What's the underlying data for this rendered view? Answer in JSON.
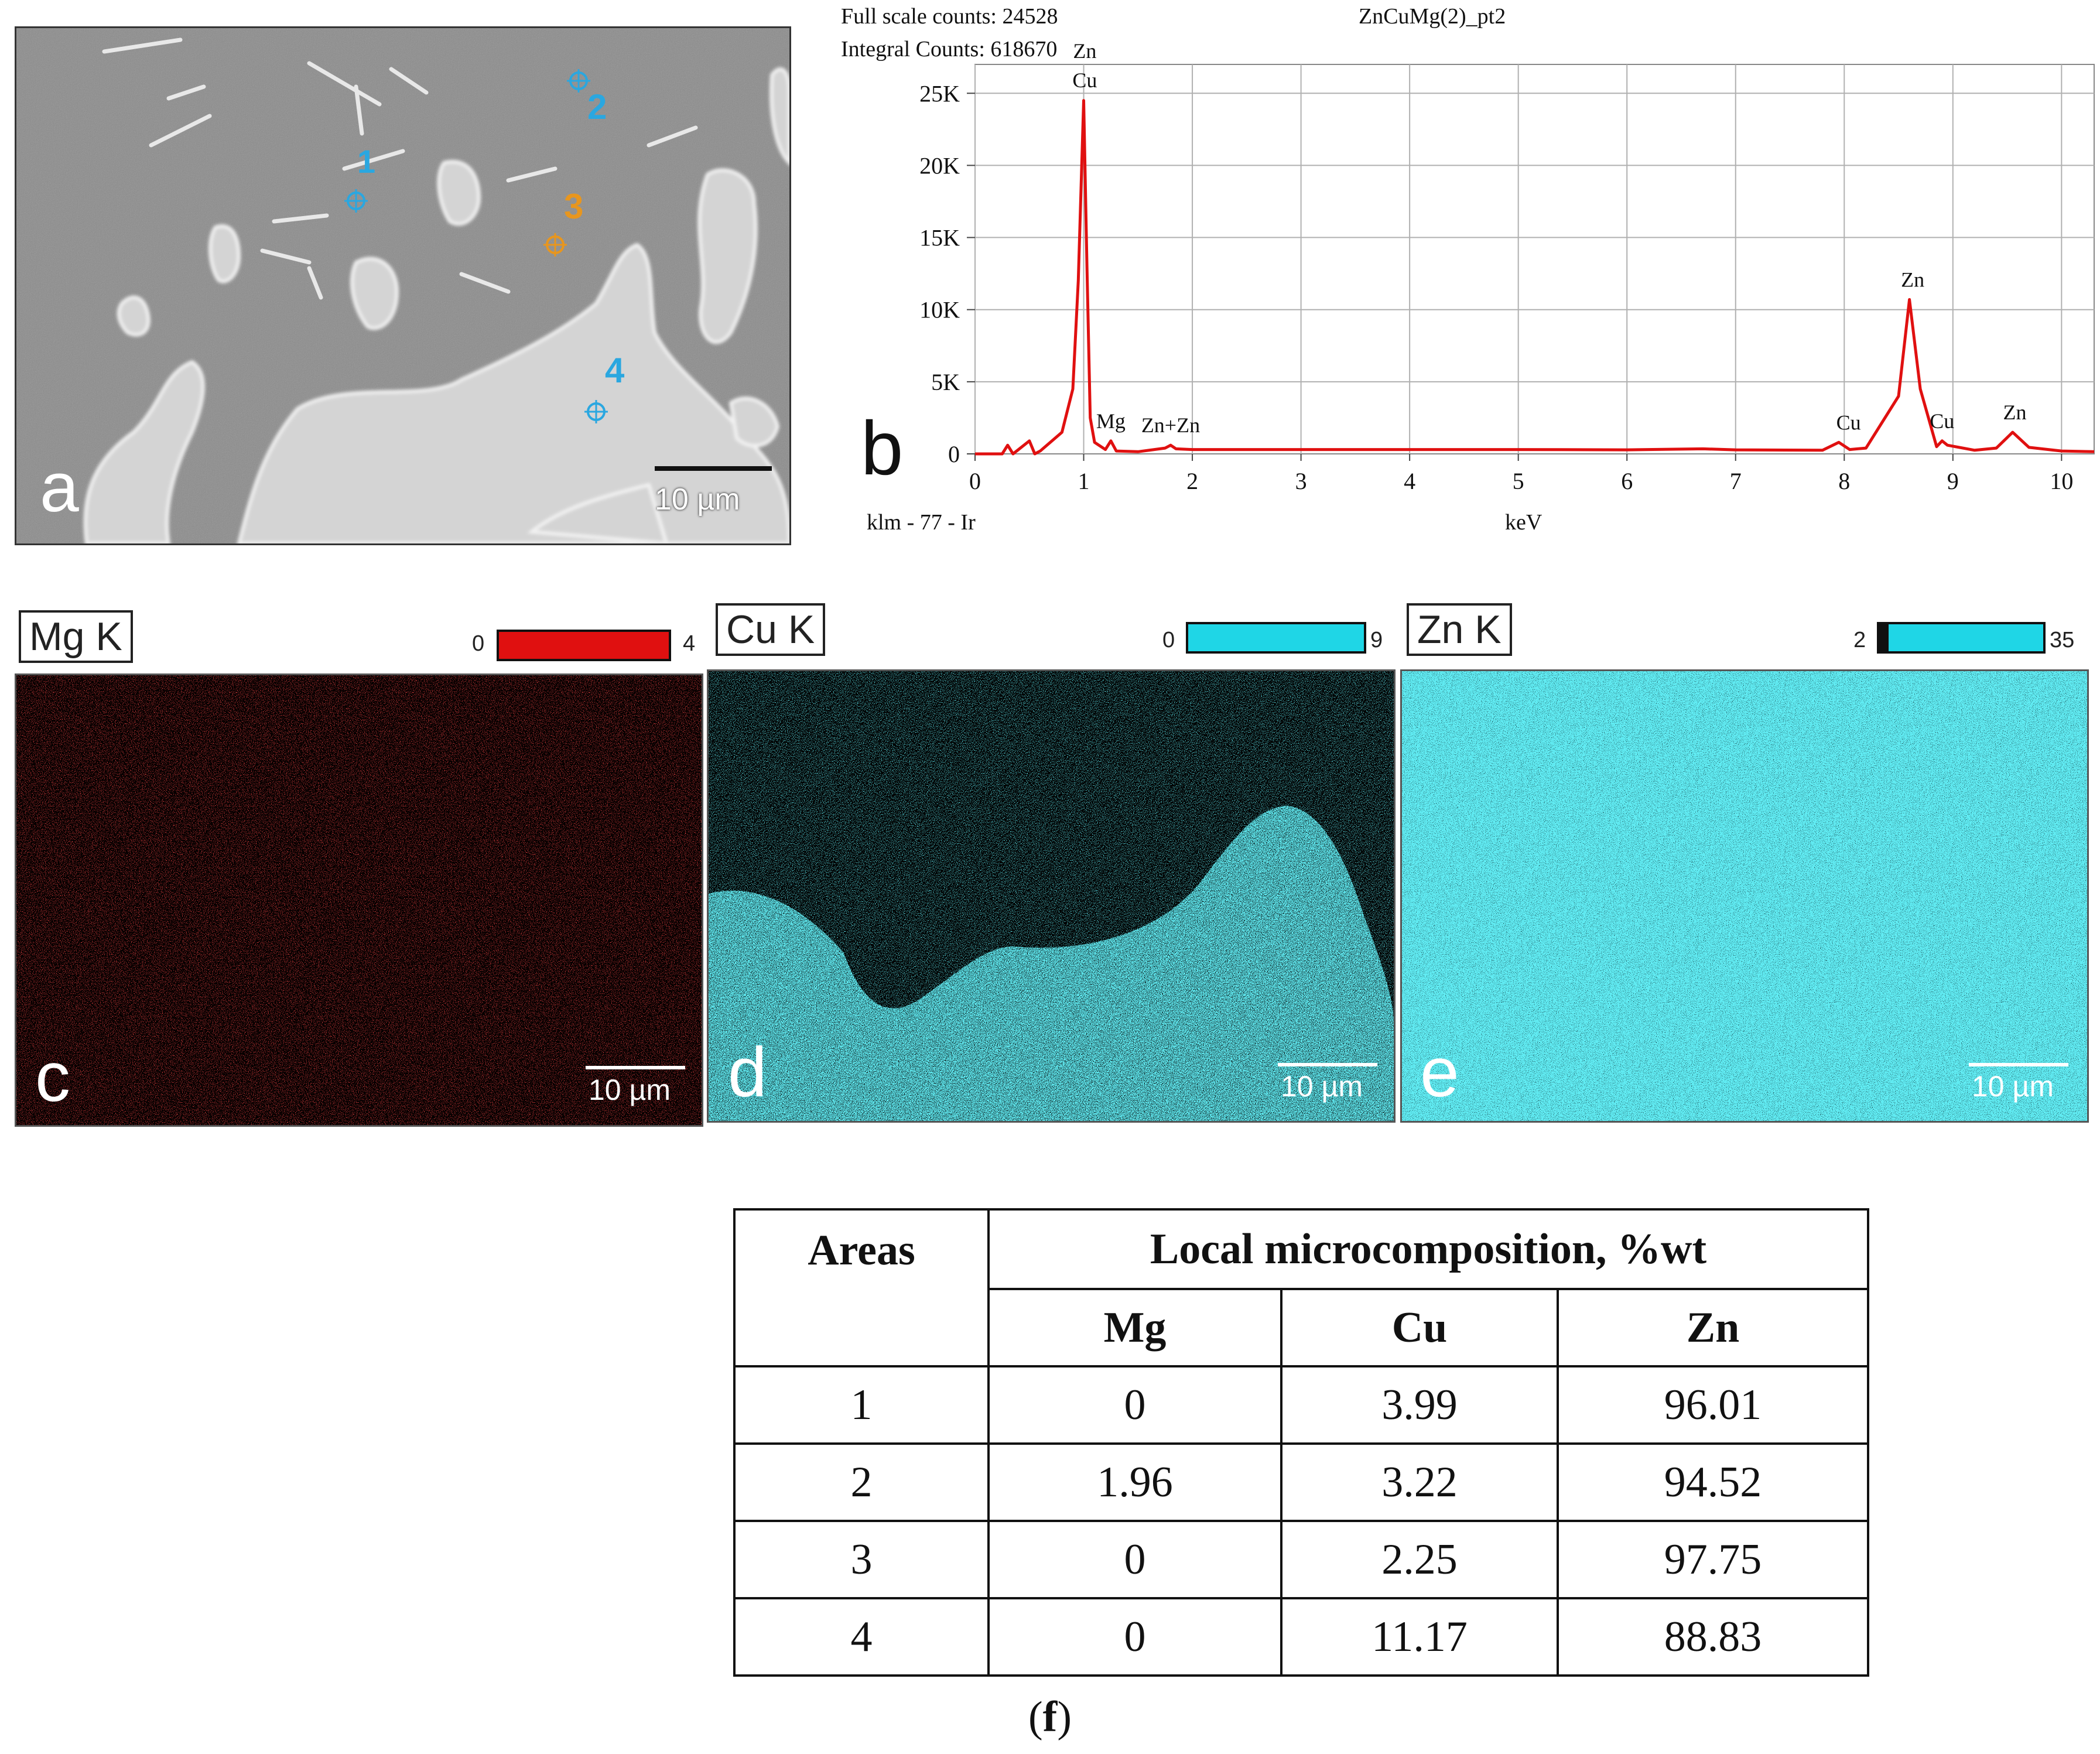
{
  "panel_a": {
    "letter": "a",
    "points": [
      "1",
      "2",
      "3",
      "4"
    ],
    "scale_label": "10 µm",
    "point_colors": [
      "#2aa7e0",
      "#2aa7e0",
      "#e8961e",
      "#2aa7e0"
    ]
  },
  "panel_b": {
    "letter": "b",
    "header_full_scale": "Full scale counts: 24528",
    "header_integral": "Integral Counts: 618670",
    "spectrum_name": "ZnCuMg(2)_pt2",
    "footer_left": "klm - 77 - Ir",
    "peak_labels": [
      "Zn",
      "Cu",
      "Mg",
      "Zn+Zn",
      "Cu",
      "Zn",
      "Cu",
      "Zn"
    ]
  },
  "chart_data": {
    "type": "line",
    "title": "ZnCuMg(2)_pt2",
    "xlabel": "keV",
    "ylabel": "",
    "xlim": [
      0,
      10.3
    ],
    "ylim": [
      0,
      27000
    ],
    "x_ticks": [
      "0",
      "1",
      "2",
      "3",
      "4",
      "5",
      "6",
      "7",
      "8",
      "9",
      "10"
    ],
    "y_ticks": [
      "0",
      "5K",
      "10K",
      "15K",
      "20K",
      "25K"
    ],
    "grid": true,
    "series": [
      {
        "color": "#e01010",
        "x": [
          0.0,
          0.25,
          0.3,
          0.35,
          0.5,
          0.55,
          0.6,
          0.8,
          0.9,
          0.95,
          1.0,
          1.03,
          1.06,
          1.1,
          1.2,
          1.25,
          1.3,
          1.5,
          1.75,
          1.8,
          1.85,
          2.0,
          3.0,
          4.0,
          5.0,
          6.0,
          6.7,
          7.0,
          7.8,
          7.95,
          8.05,
          8.2,
          8.5,
          8.6,
          8.7,
          8.85,
          8.9,
          8.95,
          9.2,
          9.4,
          9.55,
          9.7,
          10.0,
          10.3
        ],
        "y": [
          0,
          0,
          600,
          0,
          900,
          0,
          200,
          1500,
          4500,
          12000,
          24500,
          13000,
          2500,
          800,
          300,
          900,
          200,
          150,
          400,
          600,
          350,
          300,
          300,
          300,
          300,
          280,
          350,
          280,
          250,
          800,
          300,
          400,
          4000,
          10700,
          4500,
          500,
          900,
          600,
          250,
          400,
          1500,
          450,
          200,
          150
        ]
      }
    ],
    "peaks": [
      {
        "x": 1.01,
        "y": 24528,
        "labels": [
          "Zn",
          "Cu"
        ]
      },
      {
        "x": 1.25,
        "y": 900,
        "labels": [
          "Mg"
        ]
      },
      {
        "x": 1.8,
        "y": 600,
        "labels": [
          "Zn+Zn"
        ]
      },
      {
        "x": 8.04,
        "y": 800,
        "labels": [
          "Cu"
        ]
      },
      {
        "x": 8.63,
        "y": 10700,
        "labels": [
          "Zn"
        ]
      },
      {
        "x": 8.9,
        "y": 900,
        "labels": [
          "Cu"
        ]
      },
      {
        "x": 9.57,
        "y": 1500,
        "labels": [
          "Zn"
        ]
      }
    ]
  },
  "maps": [
    {
      "letter": "c",
      "element": "Mg K",
      "min": "0",
      "max": "4",
      "color": "#e01010",
      "scale_label": "10 µm"
    },
    {
      "letter": "d",
      "element": "Cu K",
      "min": "0",
      "max": "9",
      "color": "#1fd6e6",
      "scale_label": "10 µm"
    },
    {
      "letter": "e",
      "element": "Zn K",
      "min": "2",
      "max": "35",
      "color": "#1fd6e6",
      "scale_label": "10 µm"
    }
  ],
  "table": {
    "header_areas": "Areas",
    "header_group": "Local microcomposition, %wt",
    "columns": [
      "Mg",
      "Cu",
      "Zn"
    ],
    "rows": [
      [
        "1",
        "0",
        "3.99",
        "96.01"
      ],
      [
        "2",
        "1.96",
        "3.22",
        "94.52"
      ],
      [
        "3",
        "0",
        "2.25",
        "97.75"
      ],
      [
        "4",
        "0",
        "11.17",
        "88.83"
      ]
    ]
  },
  "caption_open": "(",
  "caption_letter": "f",
  "caption_close": ")"
}
